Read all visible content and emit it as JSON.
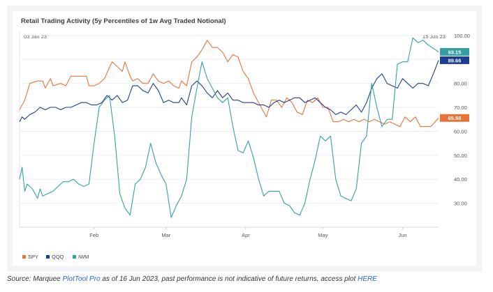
{
  "chart_data": {
    "type": "line",
    "title": "Retail Trading Activity (5y Percentiles of 1w Avg Traded Notional)",
    "date_range": {
      "start": "03 Jan 23",
      "end": "15 Jun 23"
    },
    "x_tick_labels": [
      "Feb",
      "Mar",
      "Apr",
      "May",
      "Jun"
    ],
    "x_ticks": [
      "2023-02-01",
      "2023-03-01",
      "2023-04-01",
      "2023-05-01",
      "2023-06-01"
    ],
    "y_tick_labels": [
      "100.00",
      "90.00",
      "80.00",
      "70.00",
      "60.00",
      "50.00",
      "40.00",
      "30.00"
    ],
    "ylim": [
      20,
      102
    ],
    "xlabel": "",
    "ylabel": "",
    "grid": "horizontal",
    "legend_position": "bottom-left",
    "series": [
      {
        "name": "SPY",
        "color": "#e8733a",
        "last_label": "65.58",
        "points": [
          [
            "2023-01-03",
            69
          ],
          [
            "2023-01-05",
            73
          ],
          [
            "2023-01-07",
            80
          ],
          [
            "2023-01-10",
            81
          ],
          [
            "2023-01-12",
            81
          ],
          [
            "2023-01-13",
            78
          ],
          [
            "2023-01-15",
            82
          ],
          [
            "2023-01-16",
            79
          ],
          [
            "2023-01-19",
            80
          ],
          [
            "2023-01-21",
            79
          ],
          [
            "2023-01-23",
            83
          ],
          [
            "2023-01-26",
            83
          ],
          [
            "2023-01-29",
            83
          ],
          [
            "2023-01-30",
            79
          ],
          [
            "2023-02-01",
            79
          ],
          [
            "2023-02-03",
            80
          ],
          [
            "2023-02-05",
            82
          ],
          [
            "2023-02-08",
            89
          ],
          [
            "2023-02-10",
            87
          ],
          [
            "2023-02-12",
            85
          ],
          [
            "2023-02-13",
            89
          ],
          [
            "2023-02-15",
            83
          ],
          [
            "2023-02-16",
            81
          ],
          [
            "2023-02-18",
            82
          ],
          [
            "2023-02-20",
            80
          ],
          [
            "2023-02-22",
            80
          ],
          [
            "2023-02-24",
            84
          ],
          [
            "2023-02-26",
            81
          ],
          [
            "2023-02-28",
            80
          ],
          [
            "2023-03-02",
            81
          ],
          [
            "2023-03-04",
            79
          ],
          [
            "2023-03-06",
            78
          ],
          [
            "2023-03-07",
            81
          ],
          [
            "2023-03-09",
            79
          ],
          [
            "2023-03-11",
            89
          ],
          [
            "2023-03-13",
            91
          ],
          [
            "2023-03-15",
            94
          ],
          [
            "2023-03-17",
            98
          ],
          [
            "2023-03-19",
            95
          ],
          [
            "2023-03-21",
            95
          ],
          [
            "2023-03-23",
            93
          ],
          [
            "2023-03-25",
            89
          ],
          [
            "2023-03-27",
            92
          ],
          [
            "2023-03-29",
            91
          ],
          [
            "2023-03-31",
            85
          ],
          [
            "2023-04-02",
            82
          ],
          [
            "2023-04-04",
            76
          ],
          [
            "2023-04-07",
            70
          ],
          [
            "2023-04-09",
            66
          ],
          [
            "2023-04-11",
            73
          ],
          [
            "2023-04-13",
            73
          ],
          [
            "2023-04-15",
            70
          ],
          [
            "2023-04-17",
            74
          ],
          [
            "2023-04-19",
            72
          ],
          [
            "2023-04-21",
            68
          ],
          [
            "2023-04-23",
            67
          ],
          [
            "2023-04-25",
            73
          ],
          [
            "2023-04-27",
            72
          ],
          [
            "2023-04-29",
            74
          ],
          [
            "2023-05-01",
            70
          ],
          [
            "2023-05-03",
            70
          ],
          [
            "2023-05-05",
            64
          ],
          [
            "2023-05-07",
            64
          ],
          [
            "2023-05-09",
            65
          ],
          [
            "2023-05-11",
            64
          ],
          [
            "2023-05-13",
            65
          ],
          [
            "2023-05-15",
            64
          ],
          [
            "2023-05-17",
            65
          ],
          [
            "2023-05-19",
            64
          ],
          [
            "2023-05-21",
            65
          ],
          [
            "2023-05-23",
            64
          ],
          [
            "2023-05-25",
            63
          ],
          [
            "2023-05-27",
            64
          ],
          [
            "2023-05-29",
            63
          ],
          [
            "2023-05-31",
            62
          ],
          [
            "2023-06-02",
            66
          ],
          [
            "2023-06-04",
            64
          ],
          [
            "2023-06-06",
            66
          ],
          [
            "2023-06-08",
            62
          ],
          [
            "2023-06-10",
            62
          ],
          [
            "2023-06-12",
            62
          ],
          [
            "2023-06-15",
            65.58
          ]
        ]
      },
      {
        "name": "QQQ",
        "color": "#1f3d8f",
        "last_label": "89.66",
        "points": [
          [
            "2023-01-03",
            64
          ],
          [
            "2023-01-04",
            66
          ],
          [
            "2023-01-05",
            65
          ],
          [
            "2023-01-07",
            67
          ],
          [
            "2023-01-09",
            68
          ],
          [
            "2023-01-11",
            70
          ],
          [
            "2023-01-13",
            69
          ],
          [
            "2023-01-15",
            70
          ],
          [
            "2023-01-17",
            70
          ],
          [
            "2023-01-19",
            69
          ],
          [
            "2023-01-21",
            70
          ],
          [
            "2023-01-23",
            70
          ],
          [
            "2023-01-25",
            71
          ],
          [
            "2023-01-27",
            72
          ],
          [
            "2023-01-29",
            72
          ],
          [
            "2023-01-31",
            71
          ],
          [
            "2023-02-02",
            71
          ],
          [
            "2023-02-04",
            72
          ],
          [
            "2023-02-06",
            75
          ],
          [
            "2023-02-08",
            73
          ],
          [
            "2023-02-10",
            75
          ],
          [
            "2023-02-12",
            72
          ],
          [
            "2023-02-14",
            73
          ],
          [
            "2023-02-16",
            79
          ],
          [
            "2023-02-18",
            79
          ],
          [
            "2023-02-20",
            77
          ],
          [
            "2023-02-22",
            76
          ],
          [
            "2023-02-24",
            80
          ],
          [
            "2023-02-26",
            77
          ],
          [
            "2023-02-28",
            72
          ],
          [
            "2023-03-02",
            73
          ],
          [
            "2023-03-04",
            72
          ],
          [
            "2023-03-06",
            72
          ],
          [
            "2023-03-07",
            74
          ],
          [
            "2023-03-09",
            71
          ],
          [
            "2023-03-11",
            79
          ],
          [
            "2023-03-13",
            81
          ],
          [
            "2023-03-15",
            79
          ],
          [
            "2023-03-17",
            76
          ],
          [
            "2023-03-19",
            74
          ],
          [
            "2023-03-21",
            77
          ],
          [
            "2023-03-23",
            74
          ],
          [
            "2023-03-25",
            76
          ],
          [
            "2023-03-27",
            73
          ],
          [
            "2023-03-29",
            73
          ],
          [
            "2023-03-31",
            72
          ],
          [
            "2023-04-02",
            72
          ],
          [
            "2023-04-04",
            72
          ],
          [
            "2023-04-06",
            71
          ],
          [
            "2023-04-08",
            71
          ],
          [
            "2023-04-10",
            70
          ],
          [
            "2023-04-12",
            72
          ],
          [
            "2023-04-14",
            73
          ],
          [
            "2023-04-16",
            72
          ],
          [
            "2023-04-18",
            73
          ],
          [
            "2023-04-20",
            74
          ],
          [
            "2023-04-22",
            74
          ],
          [
            "2023-04-24",
            72
          ],
          [
            "2023-04-26",
            73
          ],
          [
            "2023-04-28",
            74
          ],
          [
            "2023-04-30",
            72
          ],
          [
            "2023-05-02",
            70
          ],
          [
            "2023-05-04",
            69
          ],
          [
            "2023-05-06",
            67
          ],
          [
            "2023-05-08",
            68
          ],
          [
            "2023-05-10",
            67
          ],
          [
            "2023-05-12",
            69
          ],
          [
            "2023-05-14",
            71
          ],
          [
            "2023-05-16",
            68
          ],
          [
            "2023-05-18",
            72
          ],
          [
            "2023-05-20",
            78
          ],
          [
            "2023-05-22",
            82
          ],
          [
            "2023-05-24",
            84
          ],
          [
            "2023-05-26",
            80
          ],
          [
            "2023-05-28",
            79
          ],
          [
            "2023-05-30",
            78
          ],
          [
            "2023-06-01",
            82
          ],
          [
            "2023-06-03",
            80
          ],
          [
            "2023-06-05",
            78
          ],
          [
            "2023-06-07",
            80
          ],
          [
            "2023-06-09",
            80
          ],
          [
            "2023-06-11",
            79
          ],
          [
            "2023-06-13",
            84
          ],
          [
            "2023-06-15",
            89.66
          ]
        ]
      },
      {
        "name": "IWM",
        "color": "#34a0a4",
        "last_label": "93.15",
        "points": [
          [
            "2023-01-03",
            40
          ],
          [
            "2023-01-04",
            45
          ],
          [
            "2023-01-05",
            35
          ],
          [
            "2023-01-06",
            38
          ],
          [
            "2023-01-08",
            36
          ],
          [
            "2023-01-10",
            32
          ],
          [
            "2023-01-11",
            36
          ],
          [
            "2023-01-12",
            33
          ],
          [
            "2023-01-14",
            34
          ],
          [
            "2023-01-16",
            35
          ],
          [
            "2023-01-18",
            37
          ],
          [
            "2023-01-20",
            39
          ],
          [
            "2023-01-22",
            39
          ],
          [
            "2023-01-24",
            40
          ],
          [
            "2023-01-26",
            38
          ],
          [
            "2023-01-28",
            37
          ],
          [
            "2023-01-30",
            38
          ],
          [
            "2023-02-01",
            55
          ],
          [
            "2023-02-03",
            70
          ],
          [
            "2023-02-05",
            73
          ],
          [
            "2023-02-07",
            75
          ],
          [
            "2023-02-09",
            58
          ],
          [
            "2023-02-11",
            34
          ],
          [
            "2023-02-13",
            28
          ],
          [
            "2023-02-15",
            25
          ],
          [
            "2023-02-17",
            38
          ],
          [
            "2023-02-19",
            40
          ],
          [
            "2023-02-21",
            45
          ],
          [
            "2023-02-23",
            55
          ],
          [
            "2023-02-25",
            47
          ],
          [
            "2023-02-27",
            42
          ],
          [
            "2023-03-01",
            38
          ],
          [
            "2023-03-03",
            24
          ],
          [
            "2023-03-05",
            29
          ],
          [
            "2023-03-07",
            33
          ],
          [
            "2023-03-09",
            40
          ],
          [
            "2023-03-11",
            66
          ],
          [
            "2023-03-13",
            78
          ],
          [
            "2023-03-15",
            89
          ],
          [
            "2023-03-17",
            82
          ],
          [
            "2023-03-19",
            78
          ],
          [
            "2023-03-21",
            74
          ],
          [
            "2023-03-23",
            72
          ],
          [
            "2023-03-25",
            74
          ],
          [
            "2023-03-27",
            62
          ],
          [
            "2023-03-29",
            52
          ],
          [
            "2023-03-31",
            51
          ],
          [
            "2023-04-02",
            56
          ],
          [
            "2023-04-04",
            49
          ],
          [
            "2023-04-06",
            40
          ],
          [
            "2023-04-08",
            33
          ],
          [
            "2023-04-10",
            35
          ],
          [
            "2023-04-12",
            35
          ],
          [
            "2023-04-14",
            35
          ],
          [
            "2023-04-16",
            30
          ],
          [
            "2023-04-18",
            29
          ],
          [
            "2023-04-20",
            26
          ],
          [
            "2023-04-22",
            25
          ],
          [
            "2023-04-24",
            30
          ],
          [
            "2023-04-26",
            40
          ],
          [
            "2023-04-28",
            48
          ],
          [
            "2023-04-30",
            58
          ],
          [
            "2023-05-02",
            56
          ],
          [
            "2023-05-04",
            58
          ],
          [
            "2023-05-06",
            40
          ],
          [
            "2023-05-08",
            33
          ],
          [
            "2023-05-10",
            32
          ],
          [
            "2023-05-12",
            31
          ],
          [
            "2023-05-14",
            36
          ],
          [
            "2023-05-16",
            55
          ],
          [
            "2023-05-18",
            58
          ],
          [
            "2023-05-20",
            80
          ],
          [
            "2023-05-22",
            70
          ],
          [
            "2023-05-24",
            62
          ],
          [
            "2023-05-26",
            65
          ],
          [
            "2023-05-28",
            65
          ],
          [
            "2023-05-30",
            88
          ],
          [
            "2023-06-01",
            89
          ],
          [
            "2023-06-03",
            89
          ],
          [
            "2023-06-05",
            99
          ],
          [
            "2023-06-07",
            97
          ],
          [
            "2023-06-09",
            98
          ],
          [
            "2023-06-11",
            96
          ],
          [
            "2023-06-15",
            93.15
          ]
        ]
      }
    ]
  },
  "caption": {
    "prefix": "Source: Marquee ",
    "tool_link": "PlotTool Pro",
    "middle": " as of 16 Jun 2023, past performance is not indicative of future returns, access plot ",
    "plot_link": "HERE"
  }
}
